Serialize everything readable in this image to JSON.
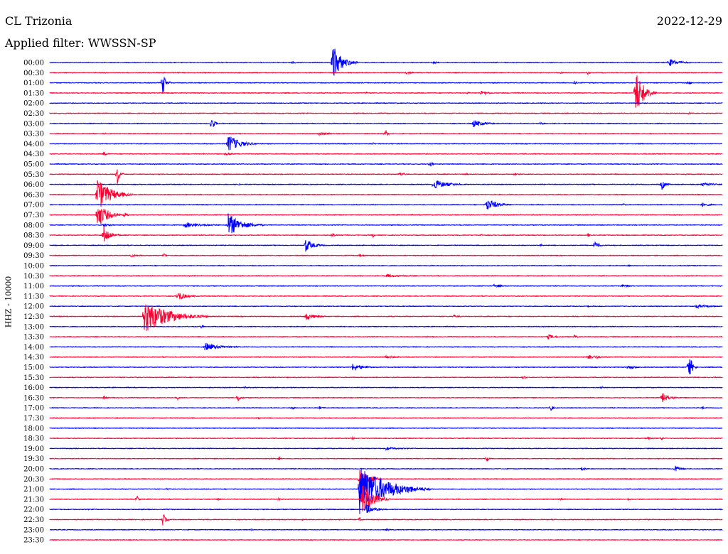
{
  "header": {
    "station": "CL Trizonia",
    "date": "2022-12-29",
    "filter": "Applied filter: WWSSN-SP"
  },
  "chart_data": {
    "type": "line",
    "title": "CL Trizonia",
    "ylabel": "HHZ - 10000",
    "colors": {
      "odd": "#0000ff",
      "even": "#ff0033"
    },
    "rows": [
      {
        "label": "00:00",
        "events": [
          [
            0.42,
            28,
            35
          ],
          [
            0.57,
            3,
            15
          ],
          [
            0.92,
            6,
            40
          ],
          [
            0.36,
            3,
            10
          ]
        ]
      },
      {
        "label": "00:30",
        "events": [
          [
            0.53,
            3,
            20
          ],
          [
            0.8,
            3,
            8
          ],
          [
            0.76,
            2,
            6
          ]
        ]
      },
      {
        "label": "01:00",
        "events": [
          [
            0.168,
            16,
            12
          ],
          [
            0.78,
            3,
            8
          ],
          [
            0.95,
            4,
            8
          ]
        ]
      },
      {
        "label": "01:30",
        "events": [
          [
            0.87,
            38,
            30
          ],
          [
            0.47,
            3,
            5
          ],
          [
            0.64,
            3,
            35
          ],
          [
            0.62,
            2,
            12
          ]
        ]
      },
      {
        "label": "02:00",
        "events": []
      },
      {
        "label": "02:30",
        "events": [
          [
            0.95,
            2,
            8
          ]
        ]
      },
      {
        "label": "03:00",
        "events": [
          [
            0.24,
            14,
            10
          ],
          [
            0.63,
            6,
            35
          ],
          [
            0.73,
            3,
            10
          ]
        ]
      },
      {
        "label": "03:30",
        "events": [
          [
            0.5,
            6,
            8
          ],
          [
            0.4,
            3,
            40
          ],
          [
            0.08,
            2,
            6
          ]
        ]
      },
      {
        "label": "04:00",
        "events": [
          [
            0.265,
            14,
            45
          ],
          [
            0.48,
            2,
            10
          ]
        ]
      },
      {
        "label": "04:30",
        "events": [
          [
            0.08,
            3,
            15
          ],
          [
            0.26,
            2,
            40
          ]
        ]
      },
      {
        "label": "05:00",
        "events": [
          [
            0.565,
            5,
            10
          ]
        ]
      },
      {
        "label": "05:30",
        "events": [
          [
            0.1,
            18,
            10
          ],
          [
            0.52,
            3,
            20
          ],
          [
            0.62,
            2,
            6
          ],
          [
            0.69,
            2,
            15
          ]
        ]
      },
      {
        "label": "06:00",
        "events": [
          [
            0.57,
            8,
            50
          ],
          [
            0.91,
            8,
            15
          ],
          [
            0.97,
            3,
            40
          ],
          [
            0.28,
            2,
            6
          ]
        ]
      },
      {
        "label": "06:30",
        "events": [
          [
            0.07,
            26,
            50
          ]
        ]
      },
      {
        "label": "07:00",
        "events": [
          [
            0.65,
            9,
            40
          ],
          [
            0.97,
            3,
            30
          ],
          [
            0.85,
            2,
            20
          ]
        ]
      },
      {
        "label": "07:30",
        "events": [
          [
            0.07,
            20,
            40
          ],
          [
            0.11,
            6,
            10
          ]
        ]
      },
      {
        "label": "08:00",
        "events": [
          [
            0.265,
            18,
            50
          ],
          [
            0.2,
            4,
            70
          ],
          [
            0.08,
            3,
            25
          ]
        ]
      },
      {
        "label": "08:30",
        "events": [
          [
            0.08,
            14,
            25
          ],
          [
            0.48,
            6,
            4
          ],
          [
            0.42,
            4,
            8
          ],
          [
            0.64,
            3,
            8
          ],
          [
            0.8,
            3,
            10
          ]
        ]
      },
      {
        "label": "09:00",
        "events": [
          [
            0.38,
            10,
            30
          ],
          [
            0.81,
            8,
            15
          ],
          [
            0.73,
            2,
            8
          ]
        ]
      },
      {
        "label": "09:30",
        "events": [
          [
            0.17,
            4,
            8
          ],
          [
            0.12,
            2,
            40
          ],
          [
            0.46,
            2,
            20
          ]
        ]
      },
      {
        "label": "10:00",
        "events": [
          [
            0.86,
            3,
            6
          ]
        ]
      },
      {
        "label": "10:30",
        "events": [
          [
            0.5,
            2,
            80
          ]
        ]
      },
      {
        "label": "11:00",
        "events": [
          [
            0.66,
            3,
            30
          ],
          [
            0.85,
            2,
            40
          ]
        ]
      },
      {
        "label": "11:30",
        "events": [
          [
            0.19,
            8,
            30
          ]
        ]
      },
      {
        "label": "12:00",
        "events": [
          [
            0.96,
            3,
            50
          ],
          [
            0.8,
            2,
            6
          ]
        ]
      },
      {
        "label": "12:30",
        "events": [
          [
            0.14,
            26,
            90
          ],
          [
            0.38,
            6,
            35
          ],
          [
            0.6,
            2,
            30
          ]
        ]
      },
      {
        "label": "13:00",
        "events": [
          [
            0.225,
            3,
            10
          ]
        ]
      },
      {
        "label": "13:30",
        "events": [
          [
            0.74,
            4,
            30
          ],
          [
            0.78,
            3,
            10
          ]
        ]
      },
      {
        "label": "14:00",
        "events": [
          [
            0.23,
            6,
            60
          ]
        ]
      },
      {
        "label": "14:30",
        "events": [
          [
            0.8,
            3,
            50
          ],
          [
            0.5,
            2,
            40
          ]
        ]
      },
      {
        "label": "15:00",
        "events": [
          [
            0.95,
            22,
            12
          ],
          [
            0.45,
            5,
            45
          ],
          [
            0.86,
            3,
            30
          ]
        ]
      },
      {
        "label": "15:30",
        "events": [
          [
            0.705,
            5,
            6
          ]
        ]
      },
      {
        "label": "16:00",
        "events": [
          [
            0.29,
            3,
            6
          ],
          [
            0.82,
            3,
            6
          ]
        ]
      },
      {
        "label": "16:30",
        "events": [
          [
            0.28,
            7,
            10
          ],
          [
            0.19,
            3,
            10
          ],
          [
            0.91,
            7,
            30
          ],
          [
            0.08,
            3,
            10
          ]
        ]
      },
      {
        "label": "17:00",
        "events": [
          [
            0.36,
            5,
            6
          ],
          [
            0.745,
            5,
            8
          ],
          [
            0.4,
            2,
            20
          ],
          [
            0.97,
            2,
            10
          ]
        ]
      },
      {
        "label": "17:30",
        "events": [
          [
            0.31,
            3,
            8
          ]
        ]
      },
      {
        "label": "18:00",
        "events": []
      },
      {
        "label": "18:30",
        "events": [
          [
            0.45,
            3,
            6
          ],
          [
            0.91,
            4,
            6
          ],
          [
            0.89,
            2,
            20
          ]
        ]
      },
      {
        "label": "19:00",
        "events": [
          [
            0.5,
            2,
            60
          ]
        ]
      },
      {
        "label": "19:30",
        "events": [
          [
            0.34,
            4,
            8
          ],
          [
            0.65,
            4,
            8
          ]
        ]
      },
      {
        "label": "20:00",
        "events": [
          [
            0.79,
            4,
            15
          ],
          [
            0.93,
            5,
            20
          ]
        ]
      },
      {
        "label": "20:30",
        "events": [
          [
            0.46,
            20,
            30
          ]
        ]
      },
      {
        "label": "21:00",
        "events": [
          [
            0.46,
            38,
            100
          ],
          [
            0.175,
            3,
            5
          ]
        ]
      },
      {
        "label": "21:30",
        "events": [
          [
            0.465,
            26,
            40
          ],
          [
            0.13,
            6,
            6
          ],
          [
            0.25,
            4,
            6
          ],
          [
            0.34,
            3,
            6
          ],
          [
            0.76,
            3,
            6
          ],
          [
            0.86,
            2,
            10
          ]
        ]
      },
      {
        "label": "22:00",
        "events": [
          [
            0.47,
            8,
            30
          ]
        ]
      },
      {
        "label": "22:30",
        "events": [
          [
            0.168,
            12,
            10
          ],
          [
            0.46,
            6,
            6
          ],
          [
            0.375,
            3,
            6
          ]
        ]
      },
      {
        "label": "23:00",
        "events": [
          [
            0.3,
            2,
            6
          ],
          [
            0.5,
            2,
            10
          ]
        ]
      },
      {
        "label": "23:30",
        "events": []
      }
    ]
  }
}
